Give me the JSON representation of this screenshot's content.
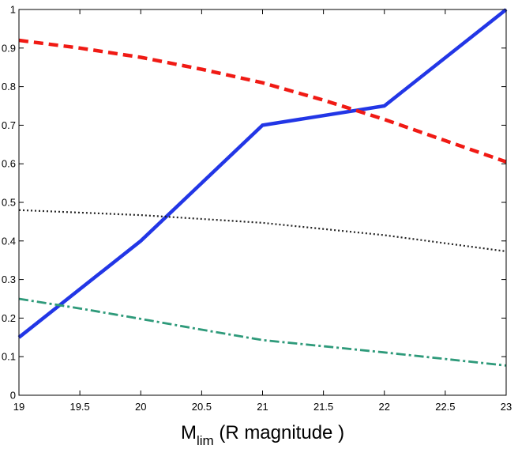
{
  "chart_data": {
    "type": "line",
    "title": "",
    "xlabel": {
      "main": "M",
      "subscript": "lim",
      "rest": " (R magnitude )"
    },
    "ylabel": "",
    "xlim": [
      19,
      23
    ],
    "ylim": [
      0,
      1
    ],
    "grid": false,
    "x_ticks": [
      "19",
      "19.5",
      "20",
      "20.5",
      "21",
      "21.5",
      "22",
      "22.5",
      "23"
    ],
    "y_ticks": [
      "0",
      "0.1",
      "0.2",
      "0.3",
      "0.4",
      "0.5",
      "0.6",
      "0.7",
      "0.8",
      "0.9",
      "1"
    ],
    "series": [
      {
        "name": "solid-blue",
        "color": "#2236e6",
        "style": "solid",
        "x": [
          19,
          20,
          21,
          22,
          23
        ],
        "y": [
          0.15,
          0.4,
          0.7,
          0.75,
          1.0
        ]
      },
      {
        "name": "dashed-red",
        "color": "#f01a14",
        "style": "dashed",
        "x": [
          19,
          19.5,
          20,
          20.5,
          21,
          21.5,
          22,
          22.5,
          23
        ],
        "y": [
          0.92,
          0.9,
          0.876,
          0.845,
          0.81,
          0.765,
          0.715,
          0.66,
          0.605
        ]
      },
      {
        "name": "dotted-black",
        "color": "#222222",
        "style": "dotted",
        "x": [
          19,
          20,
          21,
          22,
          23
        ],
        "y": [
          0.48,
          0.467,
          0.447,
          0.415,
          0.373
        ]
      },
      {
        "name": "dashdot-green",
        "color": "#2e9a7a",
        "style": "dashdot",
        "x": [
          19,
          19.5,
          20,
          20.5,
          21,
          21.5,
          22,
          22.5,
          23
        ],
        "y": [
          0.25,
          0.225,
          0.198,
          0.17,
          0.143,
          0.127,
          0.111,
          0.094,
          0.077
        ]
      }
    ]
  }
}
